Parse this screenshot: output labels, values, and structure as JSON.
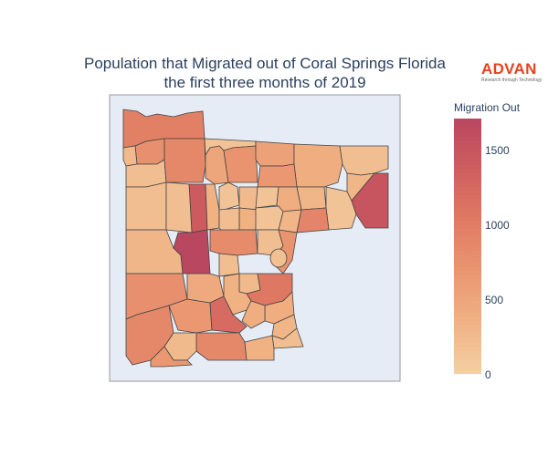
{
  "title_line1": "Population that Migrated out of Coral Springs Florida",
  "title_line2": "the first three months of 2019",
  "logo": {
    "brand": "ADVAN",
    "tagline": "Research through Technology",
    "color": "#e8421c"
  },
  "colorbar": {
    "title": "Migration Out",
    "ticks": [
      "0",
      "500",
      "1000",
      "1500"
    ],
    "colorscale": [
      "#f3d0a4",
      "#f0b284",
      "#ea9670",
      "#e07a63",
      "#cf5e5f",
      "#b9475f"
    ],
    "range": [
      0,
      1700
    ]
  },
  "map_background": "#e5ecf6",
  "border_color": "#444444",
  "chart_data": {
    "type": "choropleth",
    "title": "Population that Migrated out of Coral Springs Florida the first three months of 2019",
    "legend_title": "Migration Out",
    "zrange": [
      0,
      1700
    ],
    "colorscale": "sunsetdark-reversed",
    "regions": [
      {
        "id": "r1",
        "value": 950
      },
      {
        "id": "r2",
        "value": 750
      },
      {
        "id": "r3",
        "value": 250
      },
      {
        "id": "r4",
        "value": 200
      },
      {
        "id": "r5",
        "value": 850
      },
      {
        "id": "r6",
        "value": 150
      },
      {
        "id": "r7",
        "value": 500
      },
      {
        "id": "r8",
        "value": 700
      },
      {
        "id": "r9",
        "value": 550
      },
      {
        "id": "r10",
        "value": 400
      },
      {
        "id": "r11",
        "value": 200
      },
      {
        "id": "r12",
        "value": 650
      },
      {
        "id": "r13",
        "value": 300
      },
      {
        "id": "r14",
        "value": 200
      },
      {
        "id": "r15",
        "value": 1400
      },
      {
        "id": "r16",
        "value": 200
      },
      {
        "id": "r17",
        "value": 350
      },
      {
        "id": "r18",
        "value": 150
      },
      {
        "id": "r19",
        "value": 250
      },
      {
        "id": "r20",
        "value": 150
      },
      {
        "id": "r21",
        "value": 400
      },
      {
        "id": "r22",
        "value": 150
      },
      {
        "id": "r23",
        "value": 300
      },
      {
        "id": "r24",
        "value": 350
      },
      {
        "id": "r25",
        "value": 1500
      },
      {
        "id": "r26",
        "value": 200
      },
      {
        "id": "r27",
        "value": 150
      },
      {
        "id": "r28",
        "value": 1700
      },
      {
        "id": "r29",
        "value": 300
      },
      {
        "id": "r30",
        "value": 800
      },
      {
        "id": "r31",
        "value": 300
      },
      {
        "id": "r32",
        "value": 900
      },
      {
        "id": "r33",
        "value": 200
      },
      {
        "id": "r34",
        "value": 700
      },
      {
        "id": "r35",
        "value": 750
      },
      {
        "id": "r36",
        "value": 650
      },
      {
        "id": "r37",
        "value": 450
      },
      {
        "id": "r38",
        "value": 200
      },
      {
        "id": "r39",
        "value": 1200
      },
      {
        "id": "r40",
        "value": 250
      },
      {
        "id": "r41",
        "value": 1050
      },
      {
        "id": "r42",
        "value": 850
      },
      {
        "id": "r43",
        "value": 850
      },
      {
        "id": "r44",
        "value": 400
      },
      {
        "id": "r45",
        "value": 300
      },
      {
        "id": "r46",
        "value": 350
      },
      {
        "id": "r47",
        "value": 250
      },
      {
        "id": "r48",
        "value": 400
      },
      {
        "id": "r49",
        "value": 650
      },
      {
        "id": "r50",
        "value": 200
      },
      {
        "id": "r51",
        "value": 350
      }
    ]
  }
}
